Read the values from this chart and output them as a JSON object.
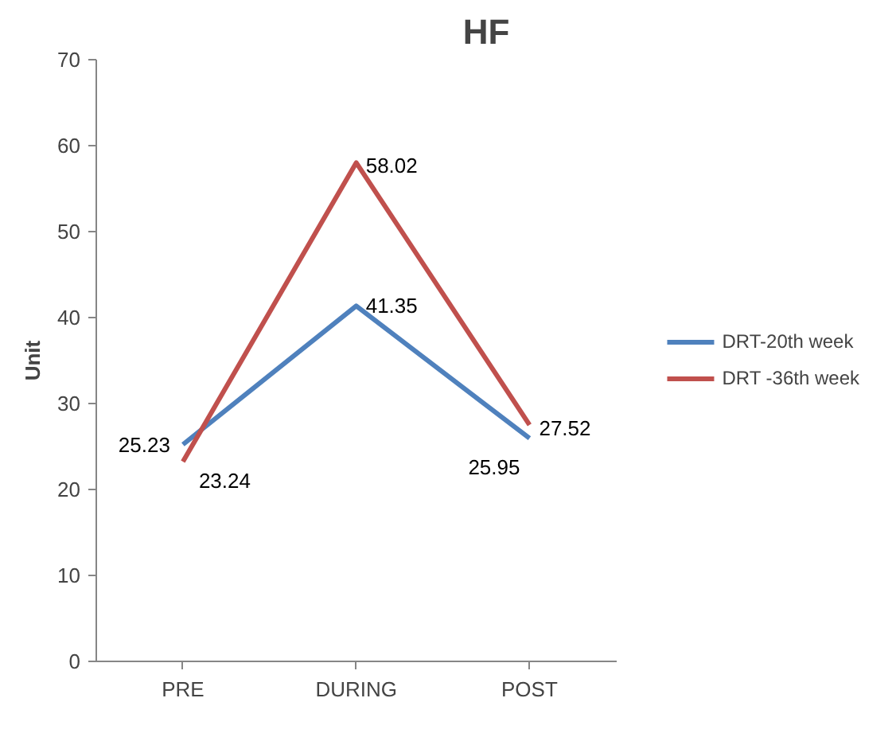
{
  "chart_data": {
    "type": "line",
    "title": "HF",
    "ylabel": "Unit",
    "categories": [
      "PRE",
      "DURING",
      "POST"
    ],
    "series": [
      {
        "name": "DRT-20th week",
        "color": "#4f81bd",
        "values": [
          25.23,
          41.35,
          25.95
        ]
      },
      {
        "name": "DRT -36th week",
        "color": "#c0504d",
        "values": [
          23.24,
          58.02,
          27.52
        ]
      }
    ],
    "ylim": [
      0,
      70
    ],
    "yticks": [
      0,
      10,
      20,
      30,
      40,
      50,
      60,
      70
    ],
    "grid": false,
    "legend": "right",
    "data_labels": true,
    "marker": "none",
    "line_style": "solid"
  }
}
